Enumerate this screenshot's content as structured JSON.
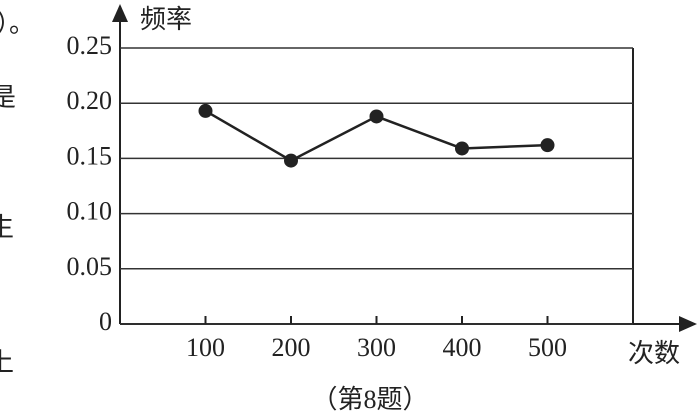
{
  "chart_data": {
    "type": "line",
    "y_label": "频率",
    "x_label": "次数",
    "caption": "（第8题）",
    "margin_fragments": [
      "）。",
      "是",
      "生",
      "上"
    ],
    "x": [
      100,
      200,
      300,
      400,
      500
    ],
    "series": [
      {
        "color": "#222222",
        "values": [
          0.193,
          0.148,
          0.188,
          0.159,
          0.162
        ]
      }
    ],
    "xlim": [
      0,
      600
    ],
    "xticks": [
      100,
      200,
      300,
      400,
      500
    ],
    "ylim": [
      0,
      0.25
    ],
    "yticks": [
      0,
      0.05,
      {
        "value": 0.1,
        "label": "0.10"
      },
      0.15,
      {
        "value": 0.2,
        "label": "0.20"
      },
      0.25
    ],
    "grid": true
  }
}
